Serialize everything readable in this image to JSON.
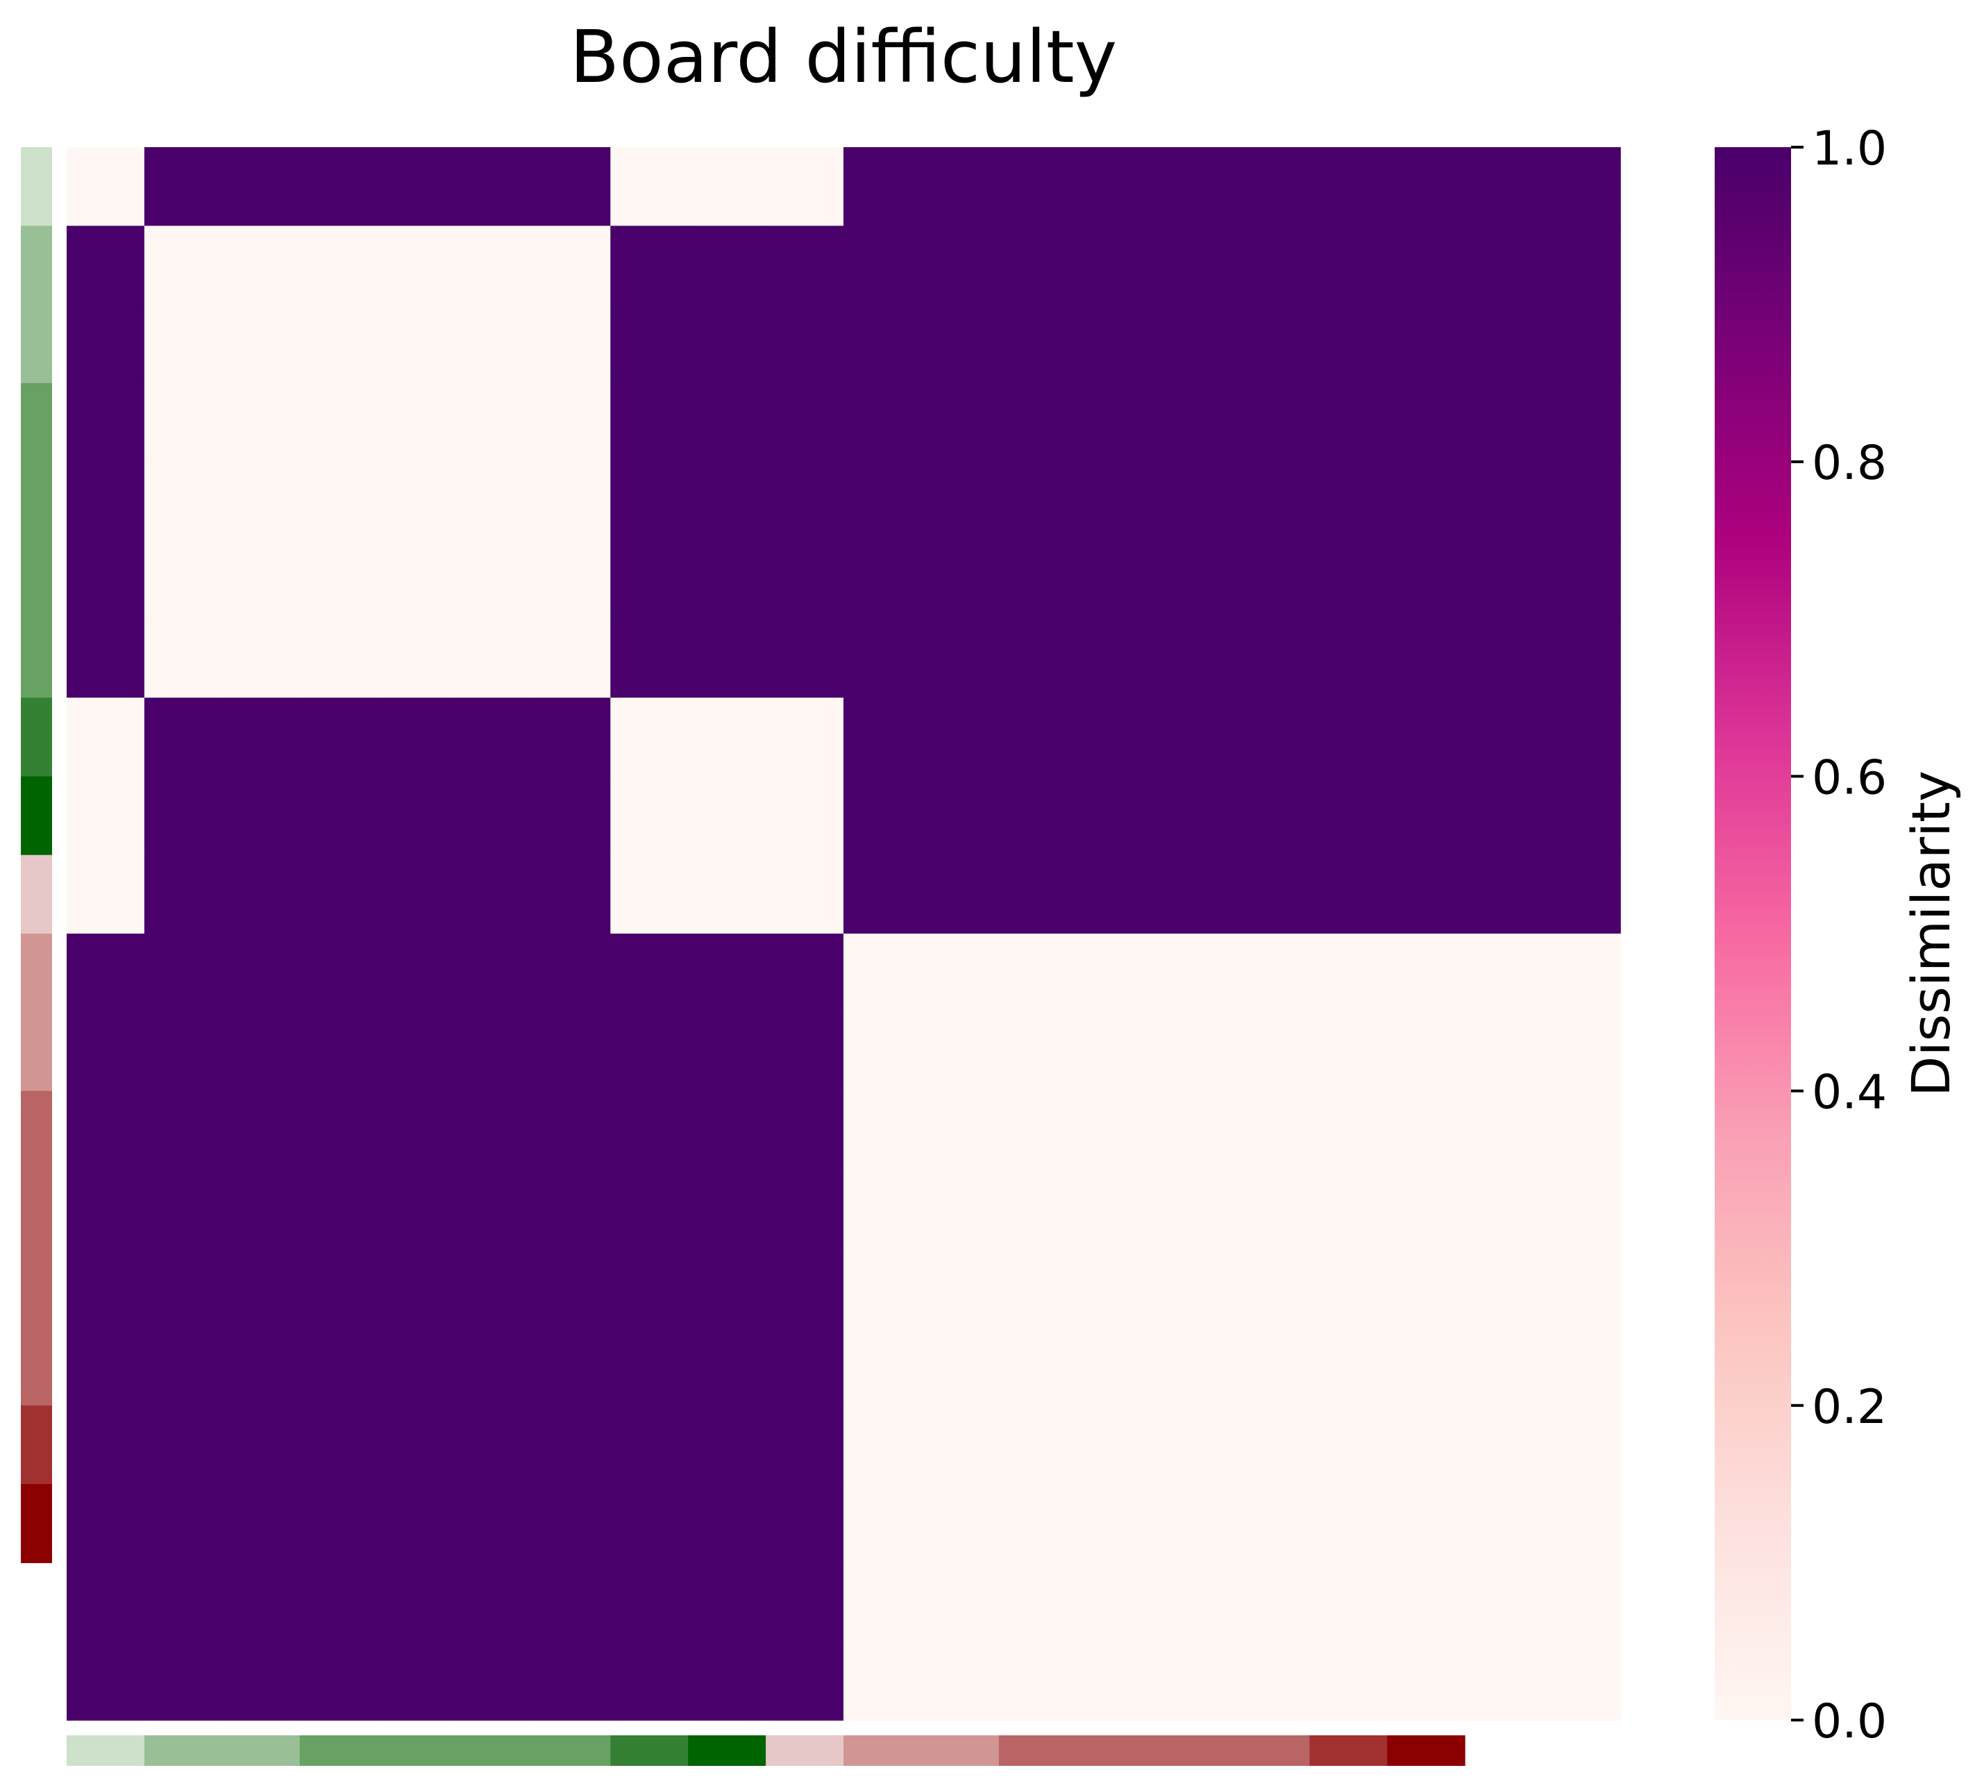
{
  "chart_data": {
    "type": "heatmap",
    "title": "Board difficulty",
    "colorbar": {
      "label": "Dissimilarity",
      "min": 0.0,
      "max": 1.0,
      "ticks": [
        "0.0",
        "0.2",
        "0.4",
        "0.6",
        "0.8",
        "1.0"
      ],
      "tick_values": [
        0.0,
        0.2,
        0.4,
        0.6,
        0.8,
        1.0
      ],
      "colormap": "RdPu",
      "stops": [
        "#fff7f3",
        "#fde0dd",
        "#fcc5c0",
        "#fa9fb5",
        "#f768a1",
        "#dd3497",
        "#ae017e",
        "#7a0177",
        "#49006a"
      ]
    },
    "groups": [
      {
        "size": 1,
        "color": "#cde1cb"
      },
      {
        "size": 2,
        "color": "#99bf97"
      },
      {
        "size": 4,
        "color": "#67a264"
      },
      {
        "size": 1,
        "color": "#348134"
      },
      {
        "size": 1,
        "color": "#006400"
      },
      {
        "size": 1,
        "color": "#e7c8c8"
      },
      {
        "size": 2,
        "color": "#d19694"
      },
      {
        "size": 4,
        "color": "#b96565"
      },
      {
        "size": 1,
        "color": "#a13131"
      },
      {
        "size": 1,
        "color": "#8b0000"
      }
    ],
    "matrix": [
      [
        0,
        1,
        1,
        1,
        1,
        1,
        1,
        0,
        0,
        0,
        1,
        1,
        1,
        1,
        1,
        1,
        1,
        1,
        1,
        1
      ],
      [
        1,
        0,
        0,
        0,
        0,
        0,
        0,
        1,
        1,
        1,
        1,
        1,
        1,
        1,
        1,
        1,
        1,
        1,
        1,
        1
      ],
      [
        1,
        0,
        0,
        0,
        0,
        0,
        0,
        1,
        1,
        1,
        1,
        1,
        1,
        1,
        1,
        1,
        1,
        1,
        1,
        1
      ],
      [
        1,
        0,
        0,
        0,
        0,
        0,
        0,
        1,
        1,
        1,
        1,
        1,
        1,
        1,
        1,
        1,
        1,
        1,
        1,
        1
      ],
      [
        1,
        0,
        0,
        0,
        0,
        0,
        0,
        1,
        1,
        1,
        1,
        1,
        1,
        1,
        1,
        1,
        1,
        1,
        1,
        1
      ],
      [
        1,
        0,
        0,
        0,
        0,
        0,
        0,
        1,
        1,
        1,
        1,
        1,
        1,
        1,
        1,
        1,
        1,
        1,
        1,
        1
      ],
      [
        1,
        0,
        0,
        0,
        0,
        0,
        0,
        1,
        1,
        1,
        1,
        1,
        1,
        1,
        1,
        1,
        1,
        1,
        1,
        1
      ],
      [
        0,
        1,
        1,
        1,
        1,
        1,
        1,
        0,
        0,
        0,
        1,
        1,
        1,
        1,
        1,
        1,
        1,
        1,
        1,
        1
      ],
      [
        0,
        1,
        1,
        1,
        1,
        1,
        1,
        0,
        0,
        0,
        1,
        1,
        1,
        1,
        1,
        1,
        1,
        1,
        1,
        1
      ],
      [
        0,
        1,
        1,
        1,
        1,
        1,
        1,
        0,
        0,
        0,
        1,
        1,
        1,
        1,
        1,
        1,
        1,
        1,
        1,
        1
      ],
      [
        1,
        1,
        1,
        1,
        1,
        1,
        1,
        1,
        1,
        1,
        0,
        0,
        0,
        0,
        0,
        0,
        0,
        0,
        0,
        0
      ],
      [
        1,
        1,
        1,
        1,
        1,
        1,
        1,
        1,
        1,
        1,
        0,
        0,
        0,
        0,
        0,
        0,
        0,
        0,
        0,
        0
      ],
      [
        1,
        1,
        1,
        1,
        1,
        1,
        1,
        1,
        1,
        1,
        0,
        0,
        0,
        0,
        0,
        0,
        0,
        0,
        0,
        0
      ],
      [
        1,
        1,
        1,
        1,
        1,
        1,
        1,
        1,
        1,
        1,
        0,
        0,
        0,
        0,
        0,
        0,
        0,
        0,
        0,
        0
      ],
      [
        1,
        1,
        1,
        1,
        1,
        1,
        1,
        1,
        1,
        1,
        0,
        0,
        0,
        0,
        0,
        0,
        0,
        0,
        0,
        0
      ],
      [
        1,
        1,
        1,
        1,
        1,
        1,
        1,
        1,
        1,
        1,
        0,
        0,
        0,
        0,
        0,
        0,
        0,
        0,
        0,
        0
      ],
      [
        1,
        1,
        1,
        1,
        1,
        1,
        1,
        1,
        1,
        1,
        0,
        0,
        0,
        0,
        0,
        0,
        0,
        0,
        0,
        0
      ],
      [
        1,
        1,
        1,
        1,
        1,
        1,
        1,
        1,
        1,
        1,
        0,
        0,
        0,
        0,
        0,
        0,
        0,
        0,
        0,
        0
      ],
      [
        1,
        1,
        1,
        1,
        1,
        1,
        1,
        1,
        1,
        1,
        0,
        0,
        0,
        0,
        0,
        0,
        0,
        0,
        0,
        0
      ],
      [
        1,
        1,
        1,
        1,
        1,
        1,
        1,
        1,
        1,
        1,
        0,
        0,
        0,
        0,
        0,
        0,
        0,
        0,
        0,
        0
      ]
    ],
    "grid": false
  }
}
